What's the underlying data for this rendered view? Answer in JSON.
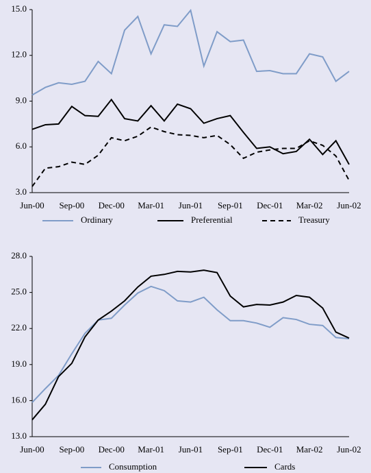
{
  "chart_data": [
    {
      "type": "line",
      "categories": [
        "Jun-00",
        null,
        null,
        "Sep-00",
        null,
        null,
        "Dec-00",
        null,
        null,
        "Mar-01",
        null,
        null,
        "Jun-01",
        null,
        null,
        "Sep-01",
        null,
        null,
        "Dec-01",
        null,
        null,
        "Mar-02",
        null,
        null,
        "Jun-02"
      ],
      "ylim": [
        3,
        15
      ],
      "yticks": [
        {
          "value": 3,
          "label": "3.0"
        },
        {
          "value": 6,
          "label": "6.0"
        },
        {
          "value": 9,
          "label": "9.0"
        },
        {
          "value": 12,
          "label": "12.0"
        },
        {
          "value": 15,
          "label": "15.0"
        }
      ],
      "series": [
        {
          "name": "Ordinary",
          "color": "#7f9cc8",
          "line_style": "solid",
          "values": [
            9.4,
            9.9,
            10.2,
            10.1,
            10.3,
            11.6,
            10.8,
            13.65,
            14.55,
            12.1,
            14.0,
            13.9,
            14.95,
            11.3,
            13.55,
            12.9,
            13.0,
            10.95,
            11.0,
            10.8,
            10.8,
            12.1,
            11.9,
            10.3,
            10.95
          ]
        },
        {
          "name": "Preferential",
          "color": "#000000",
          "line_style": "solid",
          "values": [
            7.15,
            7.45,
            7.5,
            8.65,
            8.05,
            8.0,
            9.1,
            7.85,
            7.7,
            8.7,
            7.7,
            8.8,
            8.5,
            7.55,
            7.85,
            8.05,
            6.95,
            5.9,
            6.0,
            5.55,
            5.7,
            6.5,
            5.5,
            6.4,
            4.85
          ]
        },
        {
          "name": "Treasury",
          "color": "#000000",
          "line_style": "dashed",
          "values": [
            3.4,
            4.6,
            4.7,
            5.0,
            4.85,
            5.45,
            6.6,
            6.4,
            6.7,
            7.3,
            7.0,
            6.8,
            6.75,
            6.6,
            6.75,
            6.15,
            5.25,
            5.65,
            5.8,
            5.9,
            5.9,
            6.4,
            6.1,
            5.4,
            3.8
          ]
        }
      ]
    },
    {
      "type": "line",
      "categories": [
        "Jun-00",
        null,
        null,
        "Sep-00",
        null,
        null,
        "Dec-00",
        null,
        null,
        "Mar-01",
        null,
        null,
        "Jun-01",
        null,
        null,
        "Sep-01",
        null,
        null,
        "Dec-01",
        null,
        null,
        "Mar-02",
        null,
        null,
        "Jun-02"
      ],
      "ylim": [
        13,
        28
      ],
      "yticks": [
        {
          "value": 13,
          "label": "13.0"
        },
        {
          "value": 16,
          "label": "16.0"
        },
        {
          "value": 19,
          "label": "19.0"
        },
        {
          "value": 22,
          "label": "22.0"
        },
        {
          "value": 25,
          "label": "25.0"
        },
        {
          "value": 28,
          "label": "28.0"
        }
      ],
      "series": [
        {
          "name": "Consumption",
          "color": "#7f9cc8",
          "line_style": "solid",
          "values": [
            15.85,
            17.0,
            18.1,
            19.9,
            21.6,
            22.7,
            22.85,
            23.95,
            24.95,
            25.5,
            25.15,
            24.3,
            24.2,
            24.6,
            23.55,
            22.65,
            22.65,
            22.45,
            22.1,
            22.9,
            22.75,
            22.35,
            22.25,
            21.25,
            21.15
          ]
        },
        {
          "name": "Cards",
          "color": "#000000",
          "line_style": "solid",
          "values": [
            14.4,
            15.7,
            18.0,
            19.1,
            21.3,
            22.7,
            23.45,
            24.3,
            25.45,
            26.35,
            26.5,
            26.75,
            26.7,
            26.85,
            26.65,
            24.7,
            23.8,
            24.0,
            23.95,
            24.2,
            24.75,
            24.6,
            23.7,
            21.7,
            21.2
          ]
        }
      ]
    }
  ]
}
